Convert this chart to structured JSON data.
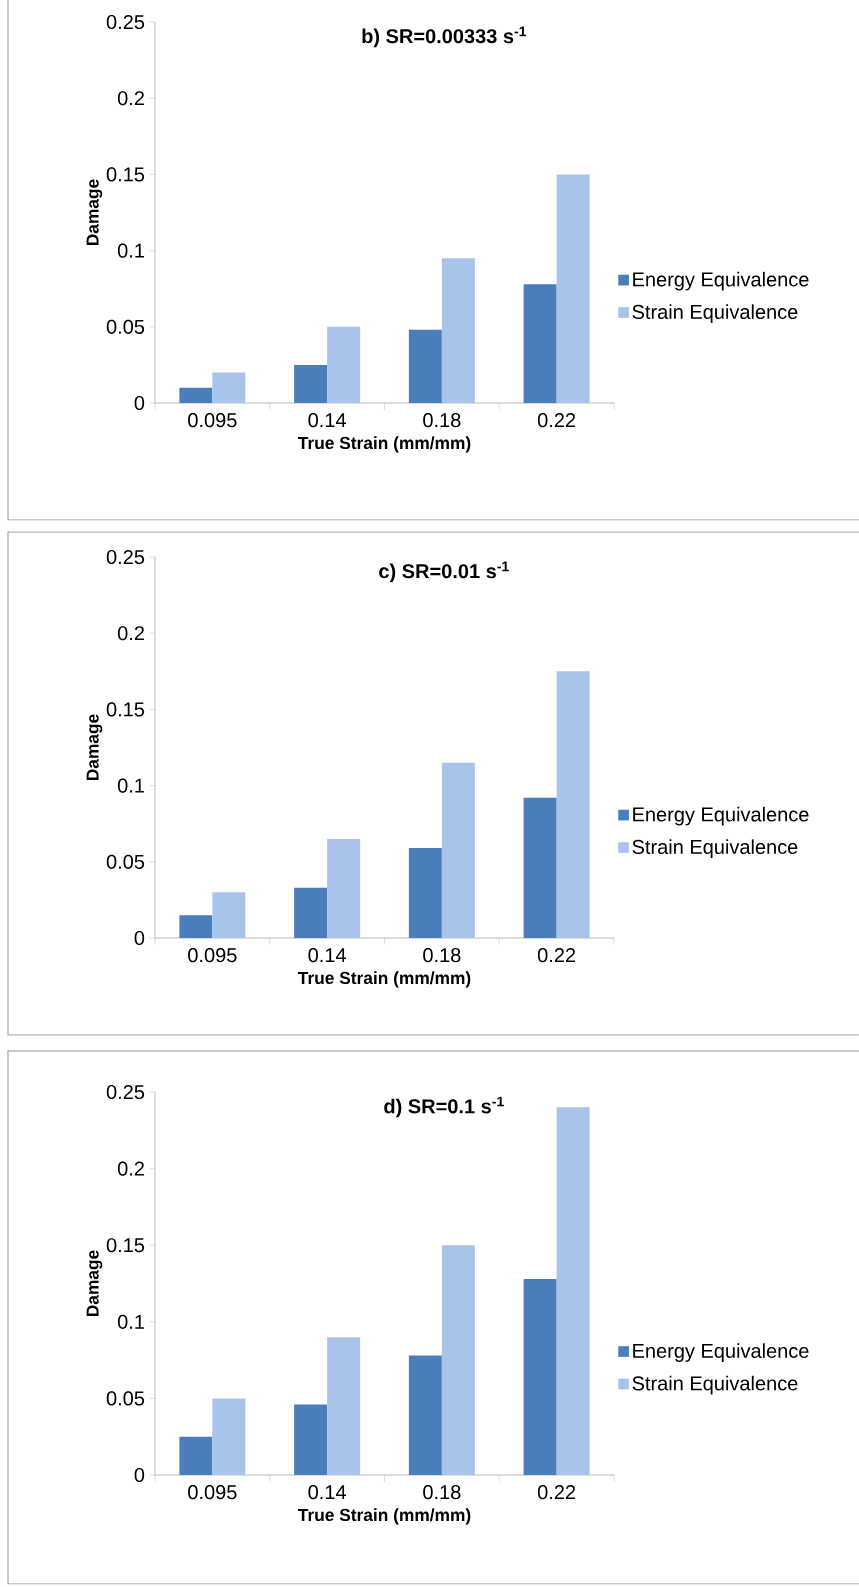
{
  "chart_data": [
    {
      "type": "bar",
      "title": "b) SR=0.00333 s$^{-1}$",
      "xlabel": "True Strain (mm/mm)",
      "ylabel": "Damage",
      "categories": [
        "0.095",
        "0.14",
        "0.18",
        "0.22"
      ],
      "ylim": [
        0,
        0.25
      ],
      "yticks": [
        0,
        0.05,
        0.1,
        0.15,
        0.2,
        0.25
      ],
      "legend": "right",
      "series": [
        {
          "name": "Energy Equivalence",
          "color": "#4a7ebb",
          "values": [
            0.01,
            0.025,
            0.048,
            0.078
          ]
        },
        {
          "name": "Strain Equivalence",
          "color": "#a9c4eb",
          "values": [
            0.02,
            0.05,
            0.095,
            0.15
          ]
        }
      ]
    },
    {
      "type": "bar",
      "title": "c) SR=0.01 s$^{-1}$",
      "xlabel": "True Strain (mm/mm)",
      "ylabel": "Damage",
      "categories": [
        "0.095",
        "0.14",
        "0.18",
        "0.22"
      ],
      "ylim": [
        0,
        0.25
      ],
      "yticks": [
        0,
        0.05,
        0.1,
        0.15,
        0.2,
        0.25
      ],
      "legend": "right",
      "series": [
        {
          "name": "Energy Equivalence",
          "color": "#4a7ebb",
          "values": [
            0.015,
            0.033,
            0.059,
            0.092
          ]
        },
        {
          "name": "Strain Equivalence",
          "color": "#a9c4eb",
          "values": [
            0.03,
            0.065,
            0.115,
            0.175
          ]
        }
      ]
    },
    {
      "type": "bar",
      "title": "d) SR=0.1 s$^{-1}$",
      "xlabel": "True Strain (mm/mm)",
      "ylabel": "Damage",
      "categories": [
        "0.095",
        "0.14",
        "0.18",
        "0.22"
      ],
      "ylim": [
        0,
        0.25
      ],
      "yticks": [
        0,
        0.05,
        0.1,
        0.15,
        0.2,
        0.25
      ],
      "legend": "right",
      "series": [
        {
          "name": "Energy Equivalence",
          "color": "#4a7ebb",
          "values": [
            0.025,
            0.046,
            0.078,
            0.128
          ]
        },
        {
          "name": "Strain Equivalence",
          "color": "#a9c4eb",
          "values": [
            0.05,
            0.09,
            0.15,
            0.24
          ]
        }
      ]
    }
  ]
}
